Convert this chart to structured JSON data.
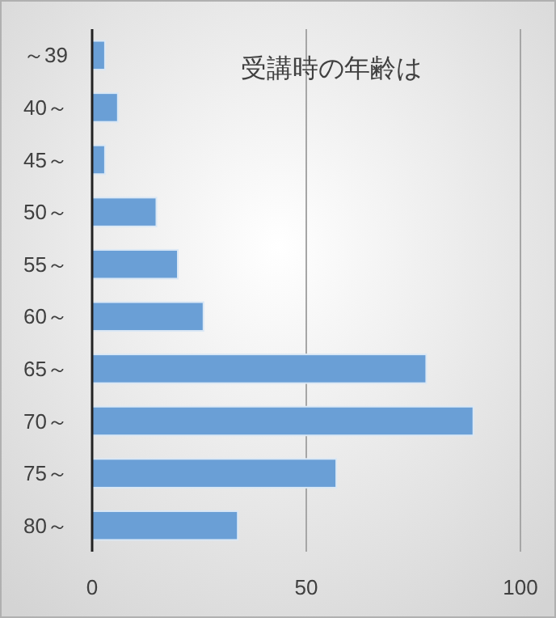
{
  "chart_data": {
    "type": "bar",
    "orientation": "horizontal",
    "title": "受講時の年齢は",
    "categories": [
      "～39",
      "40～",
      "45～",
      "50～",
      "55～",
      "60～",
      "65～",
      "70～",
      "75～",
      "80～"
    ],
    "values": [
      3,
      6,
      3,
      15,
      20,
      26,
      78,
      89,
      57,
      34
    ],
    "color": "#6a9fd6",
    "xlim": [
      0,
      100
    ],
    "xticks": [
      0,
      50,
      100
    ],
    "grid": "x"
  }
}
